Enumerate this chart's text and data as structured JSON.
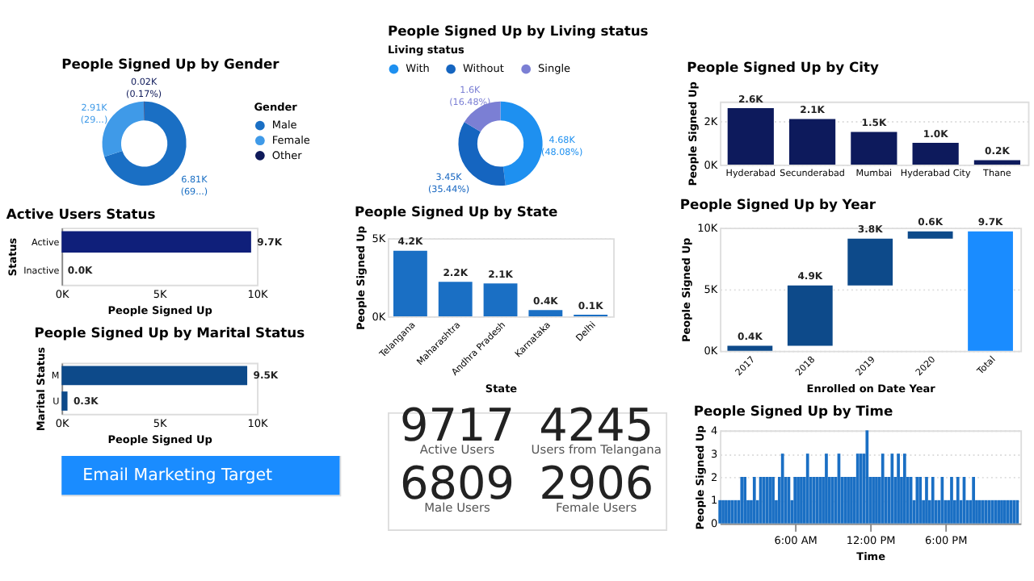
{
  "chart_data": [
    {
      "type": "donut",
      "title": "People Signed Up by Gender",
      "categories": [
        "Male",
        "Female",
        "Other"
      ],
      "values": [
        6810,
        2910,
        20
      ],
      "colors": [
        "#1a6fc4",
        "#3f9ae8",
        "#0f1a5a"
      ],
      "value_labels": [
        "6.81K\n(69...)",
        "2.91K\n(29...)",
        "0.02K\n(0.17%)"
      ],
      "legend": "right",
      "legend_title": "Gender"
    },
    {
      "type": "donut",
      "title": "People Signed Up by Living status",
      "categories": [
        "With",
        "Without",
        "Single"
      ],
      "values": [
        4680,
        3450,
        1600
      ],
      "colors": [
        "#1e90f0",
        "#1565c0",
        "#7b7fd4"
      ],
      "value_labels": [
        "4.68K\n(48.08%)",
        "3.45K\n(35.44%)",
        "1.6K\n(16.48%)"
      ],
      "legend": "top",
      "legend_title": "Living status"
    },
    {
      "type": "bar",
      "title": "People Signed Up by City",
      "categories": [
        "Hyderabad",
        "Secunderabad",
        "Mumbai",
        "Hyderabad City",
        "Thane"
      ],
      "values": [
        2.6,
        2.1,
        1.5,
        1.0,
        0.2
      ],
      "color": "#0d1a5c",
      "value_labels": [
        "2.6K",
        "2.1K",
        "1.5K",
        "1.0K",
        "0.2K"
      ],
      "ylabel": "People Signed Up",
      "ylim": [
        0,
        2.9
      ],
      "yticks": [
        {
          "value": 0,
          "label": "0K"
        },
        {
          "value": 2,
          "label": "2K"
        }
      ],
      "grid": "y"
    },
    {
      "type": "bar",
      "title": "Active Users Status",
      "orientation": "horizontal",
      "categories": [
        "Active",
        "Inactive"
      ],
      "values": [
        9.7,
        0.0
      ],
      "color": "#0f1f7a",
      "value_labels": [
        "9.7K",
        "0.0K"
      ],
      "xlabel": "People Signed Up",
      "ylabel": "Status",
      "xlim": [
        0,
        10
      ],
      "xticks": [
        {
          "value": 0,
          "label": "0K"
        },
        {
          "value": 5,
          "label": "5K"
        },
        {
          "value": 10,
          "label": "10K"
        }
      ]
    },
    {
      "type": "bar",
      "title": "People Signed Up by State",
      "categories": [
        "Telangana",
        "Maharashtra",
        "Andhra Pradesh",
        "Karnataka",
        "Delhi"
      ],
      "values": [
        4.2,
        2.2,
        2.1,
        0.4,
        0.1
      ],
      "color": "#1a6fc4",
      "value_labels": [
        "4.2K",
        "2.2K",
        "2.1K",
        "0.4K",
        "0.1K"
      ],
      "xlabel": "State",
      "ylabel": "People Signed Up",
      "ylim": [
        0,
        5
      ],
      "yticks": [
        {
          "value": 0,
          "label": "0K"
        },
        {
          "value": 5,
          "label": "5K"
        }
      ],
      "grid": "y"
    },
    {
      "type": "bar",
      "title": "People Signed Up by Year",
      "categories": [
        "2017",
        "2018",
        "2019",
        "2020",
        "Total"
      ],
      "base": [
        0,
        0.4,
        5.3,
        9.1,
        0
      ],
      "values": [
        0.4,
        4.9,
        3.8,
        0.6,
        9.7
      ],
      "colors": [
        "#0d4a8a",
        "#0d4a8a",
        "#0d4a8a",
        "#0d4a8a",
        "#1a8cff"
      ],
      "value_labels": [
        "0.4K",
        "4.9K",
        "3.8K",
        "0.6K",
        "9.7K"
      ],
      "xlabel": "Enrolled on Date Year",
      "ylabel": "People Signed Up",
      "ylim": [
        0,
        10
      ],
      "yticks": [
        {
          "value": 0,
          "label": "0K"
        },
        {
          "value": 5,
          "label": "5K"
        },
        {
          "value": 10,
          "label": "10K"
        }
      ],
      "grid": "y"
    },
    {
      "type": "bar",
      "title": "People Signed Up by Marital Status",
      "orientation": "horizontal",
      "categories": [
        "M",
        "U"
      ],
      "values": [
        9.5,
        0.3
      ],
      "color": "#0d4a8a",
      "value_labels": [
        "9.5K",
        "0.3K"
      ],
      "xlabel": "People Signed Up",
      "ylabel": "Marital Status",
      "xlim": [
        0,
        10
      ],
      "xticks": [
        {
          "value": 0,
          "label": "0K"
        },
        {
          "value": 5,
          "label": "5K"
        },
        {
          "value": 10,
          "label": "10K"
        }
      ]
    },
    {
      "type": "other",
      "annotations": [
        "9717",
        "Active Users",
        "4245",
        "Users from Telangana",
        "6809",
        "Male Users",
        "2906",
        "Female Users"
      ]
    },
    {
      "type": "bar",
      "title": "People Signed Up by Time",
      "xlabel": "Time",
      "ylabel": "People Signed Up",
      "color": "#1a6fc4",
      "grid": "y",
      "xlim": [
        0,
        24
      ],
      "xticks": [
        {
          "value": 6,
          "label": "6:00 AM"
        },
        {
          "value": 12,
          "label": "12:00 PM"
        },
        {
          "value": 18,
          "label": "6:00 PM"
        }
      ],
      "ylim": [
        0,
        4
      ],
      "yticks": [
        0,
        1,
        2,
        3,
        4
      ],
      "x": [
        0,
        0.25,
        0.5,
        0.75,
        1,
        1.25,
        1.5,
        1.75,
        2,
        2.25,
        2.5,
        2.75,
        3,
        3.25,
        3.5,
        3.75,
        4,
        4.25,
        4.5,
        4.75,
        5,
        5.25,
        5.5,
        5.75,
        6,
        6.25,
        6.5,
        6.75,
        7,
        7.25,
        7.5,
        7.75,
        8,
        8.25,
        8.5,
        8.75,
        9,
        9.25,
        9.5,
        9.75,
        10,
        10.25,
        10.5,
        10.75,
        11,
        11.25,
        11.5,
        11.75,
        12,
        12.25,
        12.5,
        12.75,
        13,
        13.25,
        13.5,
        13.75,
        14,
        14.25,
        14.5,
        14.75,
        15,
        15.25,
        15.5,
        15.75,
        16,
        16.25,
        16.5,
        16.75,
        17,
        17.25,
        17.5,
        17.75,
        18,
        18.25,
        18.5,
        18.75,
        19,
        19.25,
        19.5,
        19.75,
        20,
        20.25,
        20.5,
        20.75,
        21,
        21.25,
        21.5,
        21.75,
        22,
        22.25,
        22.5,
        22.75,
        23,
        23.25,
        23.5,
        23.75
      ],
      "values": [
        1,
        1,
        1,
        1,
        1,
        1,
        1,
        2,
        2,
        1,
        1,
        2,
        1,
        2,
        2,
        2,
        2,
        2,
        1,
        2,
        3,
        2,
        2,
        1,
        2,
        2,
        2,
        2,
        3,
        2,
        2,
        2,
        2,
        2,
        3,
        2,
        2,
        2,
        3,
        2,
        2,
        2,
        2,
        2,
        3,
        3,
        3,
        4,
        2,
        2,
        2,
        2,
        3,
        2,
        2,
        3,
        2,
        3,
        2,
        3,
        2,
        2,
        1,
        2,
        2,
        1,
        2,
        1,
        2,
        1,
        1,
        2,
        1,
        1,
        2,
        1,
        2,
        1,
        2,
        1,
        1,
        2,
        1,
        1,
        1,
        1,
        1,
        1,
        1,
        1,
        1,
        1,
        1,
        1,
        1,
        1
      ]
    },
    {
      "type": "other",
      "annotations": [
        "Email Marketing Target"
      ]
    }
  ]
}
